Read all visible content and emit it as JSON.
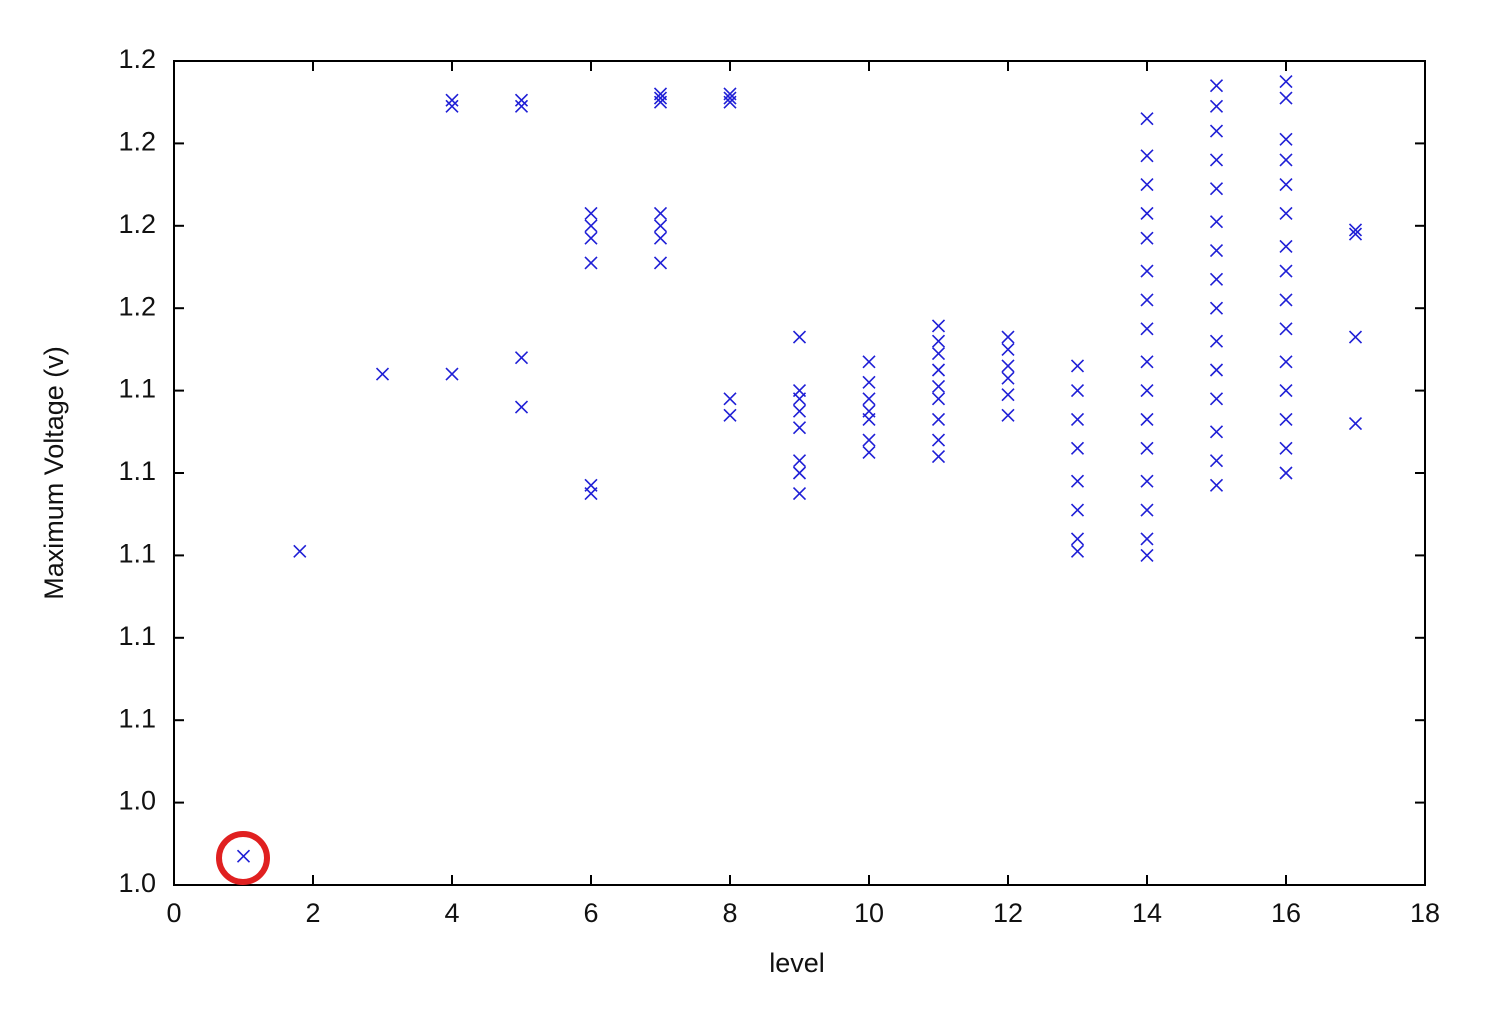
{
  "chart_data": {
    "type": "scatter",
    "x_label": "level",
    "y_label": "Maximum Voltage (v)",
    "xlim": [
      0,
      18
    ],
    "xticks": [
      0,
      2,
      4,
      6,
      8,
      10,
      12,
      14,
      16,
      18
    ],
    "ylim": [
      1.02,
      1.22
    ],
    "yticks": [
      {
        "value": 1.02,
        "label": "1.0"
      },
      {
        "value": 1.04,
        "label": "1.0"
      },
      {
        "value": 1.06,
        "label": "1.1"
      },
      {
        "value": 1.08,
        "label": "1.1"
      },
      {
        "value": 1.1,
        "label": "1.1"
      },
      {
        "value": 1.12,
        "label": "1.1"
      },
      {
        "value": 1.14,
        "label": "1.1"
      },
      {
        "value": 1.16,
        "label": "1.2"
      },
      {
        "value": 1.18,
        "label": "1.2"
      },
      {
        "value": 1.2,
        "label": "1.2"
      },
      {
        "value": 1.22,
        "label": "1.2"
      }
    ],
    "series": [
      {
        "color": "#1f1fd6",
        "x": [
          1,
          1.81,
          3,
          4,
          4,
          4,
          5,
          5,
          5,
          5,
          6,
          6,
          6,
          6,
          6,
          6,
          7,
          7,
          7,
          7,
          7,
          7,
          7,
          8,
          8,
          8,
          8,
          8,
          9,
          9,
          9,
          9,
          9,
          9,
          9,
          9,
          10,
          10,
          10,
          10,
          10,
          10,
          10,
          11,
          11,
          11,
          11,
          11,
          11,
          11,
          11,
          11,
          12,
          12,
          12,
          12,
          12,
          12,
          13,
          13,
          13,
          13,
          13,
          13,
          13,
          13,
          14,
          14,
          14,
          14,
          14,
          14,
          14,
          14,
          14,
          14,
          14,
          14,
          14,
          14,
          14,
          14,
          15,
          15,
          15,
          15,
          15,
          15,
          15,
          15,
          15,
          15,
          15,
          15,
          15,
          15,
          15,
          16,
          16,
          16,
          16,
          16,
          16,
          16,
          16,
          16,
          16,
          16,
          16,
          16,
          16,
          16,
          17,
          17,
          17,
          17
        ],
        "y": [
          1.027,
          1.101,
          1.144,
          1.144,
          1.2105,
          1.209,
          1.2105,
          1.209,
          1.148,
          1.136,
          1.183,
          1.18,
          1.177,
          1.171,
          1.117,
          1.115,
          1.212,
          1.211,
          1.21,
          1.183,
          1.18,
          1.177,
          1.171,
          1.212,
          1.211,
          1.21,
          1.138,
          1.134,
          1.153,
          1.14,
          1.138,
          1.135,
          1.131,
          1.123,
          1.12,
          1.115,
          1.147,
          1.142,
          1.138,
          1.135,
          1.133,
          1.128,
          1.125,
          1.1557,
          1.152,
          1.149,
          1.145,
          1.141,
          1.138,
          1.133,
          1.128,
          1.124,
          1.153,
          1.15,
          1.146,
          1.143,
          1.139,
          1.134,
          1.146,
          1.14,
          1.133,
          1.126,
          1.118,
          1.111,
          1.104,
          1.101,
          1.206,
          1.197,
          1.19,
          1.183,
          1.177,
          1.169,
          1.162,
          1.155,
          1.147,
          1.14,
          1.133,
          1.126,
          1.118,
          1.111,
          1.104,
          1.1,
          1.214,
          1.209,
          1.203,
          1.196,
          1.189,
          1.181,
          1.174,
          1.167,
          1.16,
          1.152,
          1.145,
          1.138,
          1.13,
          1.123,
          1.117,
          1.215,
          1.211,
          1.201,
          1.196,
          1.19,
          1.183,
          1.175,
          1.169,
          1.162,
          1.155,
          1.147,
          1.14,
          1.133,
          1.126,
          1.12,
          1.179,
          1.178,
          1.153,
          1.132
        ]
      }
    ]
  }
}
